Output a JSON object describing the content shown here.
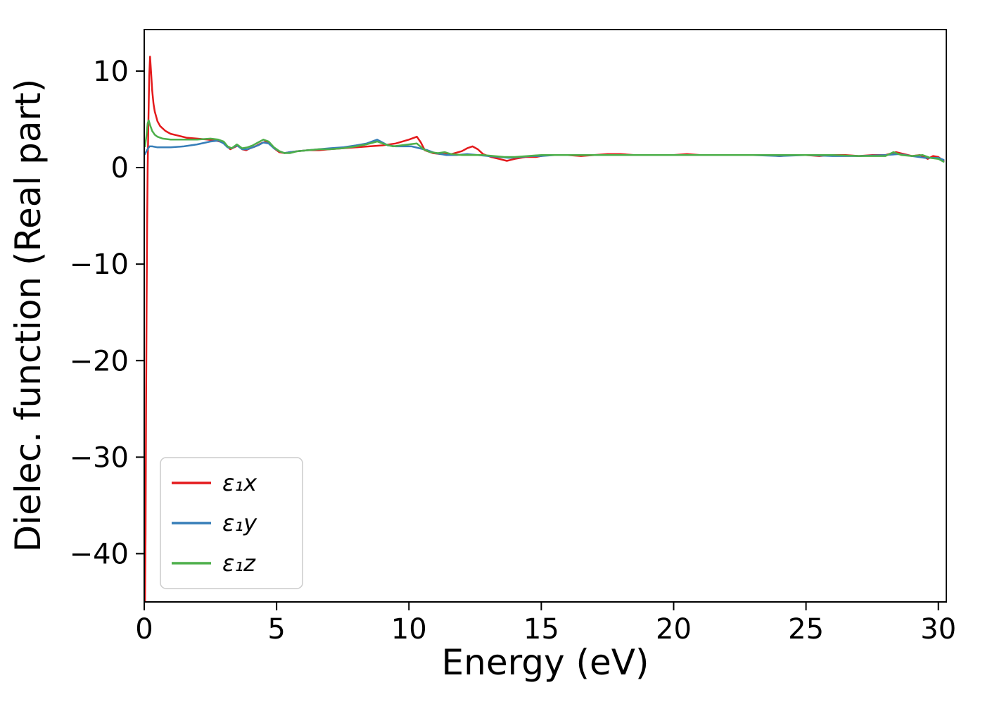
{
  "chart_data": {
    "type": "line",
    "title": "",
    "xlabel": "Energy (eV)",
    "ylabel": "Dielec. function (Real part)",
    "xlim": [
      0,
      30.3
    ],
    "ylim": [
      -45,
      14.3
    ],
    "grid": false,
    "legend_position": "lower left",
    "axis_color": "#000000",
    "xticks": [
      {
        "v": 0,
        "l": "0"
      },
      {
        "v": 5,
        "l": "5"
      },
      {
        "v": 10,
        "l": "10"
      },
      {
        "v": 15,
        "l": "15"
      },
      {
        "v": 20,
        "l": "20"
      },
      {
        "v": 25,
        "l": "25"
      },
      {
        "v": 30,
        "l": "30"
      }
    ],
    "yticks": [
      {
        "v": 10,
        "l": "10"
      },
      {
        "v": 0,
        "l": "0"
      },
      {
        "v": -10,
        "l": "−10"
      },
      {
        "v": -20,
        "l": "−20"
      },
      {
        "v": -30,
        "l": "−30"
      },
      {
        "v": -40,
        "l": "−40"
      }
    ],
    "series": [
      {
        "name": "ε₁x",
        "color": "#e41a1c",
        "points": [
          [
            0.03,
            -45
          ],
          [
            0.05,
            -38
          ],
          [
            0.07,
            -25
          ],
          [
            0.09,
            -14
          ],
          [
            0.11,
            -6
          ],
          [
            0.13,
            0
          ],
          [
            0.16,
            5
          ],
          [
            0.19,
            9.5
          ],
          [
            0.22,
            11.5
          ],
          [
            0.26,
            9.8
          ],
          [
            0.3,
            8
          ],
          [
            0.35,
            6.6
          ],
          [
            0.4,
            5.8
          ],
          [
            0.5,
            4.8
          ],
          [
            0.6,
            4.3
          ],
          [
            0.8,
            3.8
          ],
          [
            1.0,
            3.5
          ],
          [
            1.3,
            3.3
          ],
          [
            1.6,
            3.1
          ],
          [
            2.0,
            3.0
          ],
          [
            2.4,
            2.9
          ],
          [
            2.7,
            2.8
          ],
          [
            3.0,
            2.6
          ],
          [
            3.1,
            2.3
          ],
          [
            3.25,
            1.9
          ],
          [
            3.4,
            2.1
          ],
          [
            3.55,
            2.3
          ],
          [
            3.7,
            1.9
          ],
          [
            3.85,
            1.8
          ],
          [
            4.0,
            2.0
          ],
          [
            4.2,
            2.2
          ],
          [
            4.4,
            2.5
          ],
          [
            4.6,
            2.7
          ],
          [
            4.75,
            2.5
          ],
          [
            4.9,
            2.0
          ],
          [
            5.1,
            1.6
          ],
          [
            5.3,
            1.5
          ],
          [
            5.5,
            1.6
          ],
          [
            5.8,
            1.7
          ],
          [
            6.2,
            1.8
          ],
          [
            6.6,
            1.8
          ],
          [
            7.0,
            1.9
          ],
          [
            7.5,
            2.0
          ],
          [
            8.0,
            2.1
          ],
          [
            8.5,
            2.2
          ],
          [
            9.0,
            2.3
          ],
          [
            9.5,
            2.5
          ],
          [
            10.0,
            2.9
          ],
          [
            10.3,
            3.2
          ],
          [
            10.45,
            2.6
          ],
          [
            10.6,
            1.8
          ],
          [
            10.9,
            1.5
          ],
          [
            11.2,
            1.4
          ],
          [
            11.6,
            1.4
          ],
          [
            12.0,
            1.7
          ],
          [
            12.2,
            2.0
          ],
          [
            12.4,
            2.2
          ],
          [
            12.6,
            1.9
          ],
          [
            12.8,
            1.4
          ],
          [
            13.1,
            1.1
          ],
          [
            13.4,
            0.9
          ],
          [
            13.7,
            0.7
          ],
          [
            14.0,
            0.9
          ],
          [
            14.4,
            1.1
          ],
          [
            14.8,
            1.1
          ],
          [
            15.2,
            1.3
          ],
          [
            15.6,
            1.3
          ],
          [
            16.0,
            1.3
          ],
          [
            16.5,
            1.2
          ],
          [
            17.0,
            1.3
          ],
          [
            17.5,
            1.4
          ],
          [
            18.0,
            1.4
          ],
          [
            18.5,
            1.3
          ],
          [
            19.0,
            1.3
          ],
          [
            19.5,
            1.3
          ],
          [
            20.0,
            1.3
          ],
          [
            20.5,
            1.4
          ],
          [
            21.0,
            1.3
          ],
          [
            21.5,
            1.3
          ],
          [
            22.0,
            1.3
          ],
          [
            22.5,
            1.3
          ],
          [
            23.0,
            1.3
          ],
          [
            23.5,
            1.3
          ],
          [
            24.0,
            1.2
          ],
          [
            24.5,
            1.3
          ],
          [
            25.0,
            1.3
          ],
          [
            25.5,
            1.2
          ],
          [
            26.0,
            1.3
          ],
          [
            26.5,
            1.3
          ],
          [
            27.0,
            1.2
          ],
          [
            27.5,
            1.3
          ],
          [
            28.0,
            1.3
          ],
          [
            28.4,
            1.6
          ],
          [
            28.7,
            1.4
          ],
          [
            29.0,
            1.2
          ],
          [
            29.3,
            1.3
          ],
          [
            29.6,
            0.9
          ],
          [
            29.8,
            1.2
          ],
          [
            30.0,
            1.1
          ],
          [
            30.2,
            0.7
          ]
        ]
      },
      {
        "name": "ε₁y",
        "color": "#377eb8",
        "points": [
          [
            0.03,
            1.4
          ],
          [
            0.1,
            1.8
          ],
          [
            0.2,
            2.2
          ],
          [
            0.3,
            2.2
          ],
          [
            0.5,
            2.1
          ],
          [
            0.8,
            2.1
          ],
          [
            1.0,
            2.1
          ],
          [
            1.5,
            2.2
          ],
          [
            2.0,
            2.4
          ],
          [
            2.5,
            2.7
          ],
          [
            2.8,
            2.8
          ],
          [
            3.0,
            2.5
          ],
          [
            3.15,
            2.1
          ],
          [
            3.3,
            2.0
          ],
          [
            3.5,
            2.3
          ],
          [
            3.7,
            1.9
          ],
          [
            3.9,
            1.9
          ],
          [
            4.1,
            2.1
          ],
          [
            4.3,
            2.3
          ],
          [
            4.5,
            2.6
          ],
          [
            4.7,
            2.5
          ],
          [
            4.9,
            2.0
          ],
          [
            5.1,
            1.7
          ],
          [
            5.3,
            1.5
          ],
          [
            5.5,
            1.6
          ],
          [
            5.8,
            1.7
          ],
          [
            6.2,
            1.8
          ],
          [
            6.6,
            1.9
          ],
          [
            7.0,
            2.0
          ],
          [
            7.5,
            2.1
          ],
          [
            8.0,
            2.3
          ],
          [
            8.4,
            2.5
          ],
          [
            8.8,
            2.9
          ],
          [
            9.0,
            2.6
          ],
          [
            9.2,
            2.3
          ],
          [
            9.5,
            2.2
          ],
          [
            9.8,
            2.2
          ],
          [
            10.1,
            2.2
          ],
          [
            10.4,
            2.0
          ],
          [
            10.7,
            1.8
          ],
          [
            11.0,
            1.5
          ],
          [
            11.4,
            1.3
          ],
          [
            11.8,
            1.3
          ],
          [
            12.2,
            1.4
          ],
          [
            12.6,
            1.3
          ],
          [
            13.0,
            1.2
          ],
          [
            13.4,
            1.1
          ],
          [
            13.8,
            1.0
          ],
          [
            14.2,
            1.1
          ],
          [
            14.6,
            1.2
          ],
          [
            15.0,
            1.2
          ],
          [
            15.5,
            1.3
          ],
          [
            16.0,
            1.3
          ],
          [
            17.0,
            1.3
          ],
          [
            18.0,
            1.3
          ],
          [
            19.0,
            1.3
          ],
          [
            20.0,
            1.3
          ],
          [
            21.0,
            1.3
          ],
          [
            22.0,
            1.3
          ],
          [
            23.0,
            1.3
          ],
          [
            24.0,
            1.2
          ],
          [
            25.0,
            1.3
          ],
          [
            26.0,
            1.2
          ],
          [
            27.0,
            1.2
          ],
          [
            28.0,
            1.3
          ],
          [
            28.5,
            1.4
          ],
          [
            29.0,
            1.2
          ],
          [
            29.5,
            1.0
          ],
          [
            30.0,
            1.0
          ],
          [
            30.2,
            0.8
          ]
        ]
      },
      {
        "name": "ε₁z",
        "color": "#4daf4a",
        "points": [
          [
            0.03,
            2.2
          ],
          [
            0.08,
            3.2
          ],
          [
            0.13,
            4.6
          ],
          [
            0.17,
            4.9
          ],
          [
            0.22,
            4.4
          ],
          [
            0.3,
            3.8
          ],
          [
            0.4,
            3.4
          ],
          [
            0.5,
            3.2
          ],
          [
            0.7,
            3.0
          ],
          [
            1.0,
            2.9
          ],
          [
            1.5,
            2.9
          ],
          [
            2.0,
            2.9
          ],
          [
            2.5,
            3.0
          ],
          [
            2.8,
            2.9
          ],
          [
            3.0,
            2.7
          ],
          [
            3.15,
            2.2
          ],
          [
            3.3,
            2.0
          ],
          [
            3.5,
            2.4
          ],
          [
            3.7,
            2.0
          ],
          [
            3.9,
            2.1
          ],
          [
            4.1,
            2.3
          ],
          [
            4.3,
            2.6
          ],
          [
            4.5,
            2.9
          ],
          [
            4.7,
            2.7
          ],
          [
            4.9,
            2.1
          ],
          [
            5.1,
            1.7
          ],
          [
            5.3,
            1.5
          ],
          [
            5.5,
            1.5
          ],
          [
            5.8,
            1.7
          ],
          [
            6.2,
            1.8
          ],
          [
            6.6,
            1.9
          ],
          [
            7.0,
            1.9
          ],
          [
            7.5,
            2.0
          ],
          [
            8.0,
            2.2
          ],
          [
            8.4,
            2.4
          ],
          [
            8.8,
            2.7
          ],
          [
            9.1,
            2.4
          ],
          [
            9.4,
            2.2
          ],
          [
            9.7,
            2.3
          ],
          [
            10.0,
            2.4
          ],
          [
            10.3,
            2.5
          ],
          [
            10.55,
            1.9
          ],
          [
            10.8,
            1.6
          ],
          [
            11.1,
            1.5
          ],
          [
            11.35,
            1.6
          ],
          [
            11.6,
            1.4
          ],
          [
            12.0,
            1.3
          ],
          [
            12.4,
            1.3
          ],
          [
            12.8,
            1.3
          ],
          [
            13.2,
            1.2
          ],
          [
            13.6,
            1.1
          ],
          [
            14.0,
            1.1
          ],
          [
            14.5,
            1.2
          ],
          [
            15.0,
            1.3
          ],
          [
            15.5,
            1.3
          ],
          [
            16.0,
            1.3
          ],
          [
            17.0,
            1.3
          ],
          [
            18.0,
            1.3
          ],
          [
            19.0,
            1.3
          ],
          [
            20.0,
            1.3
          ],
          [
            21.0,
            1.3
          ],
          [
            22.0,
            1.3
          ],
          [
            23.0,
            1.3
          ],
          [
            24.0,
            1.3
          ],
          [
            25.0,
            1.3
          ],
          [
            26.0,
            1.3
          ],
          [
            27.0,
            1.2
          ],
          [
            28.0,
            1.2
          ],
          [
            28.3,
            1.6
          ],
          [
            28.6,
            1.3
          ],
          [
            29.0,
            1.2
          ],
          [
            29.4,
            1.3
          ],
          [
            29.7,
            1.0
          ],
          [
            30.0,
            0.9
          ],
          [
            30.2,
            0.6
          ]
        ]
      }
    ]
  }
}
